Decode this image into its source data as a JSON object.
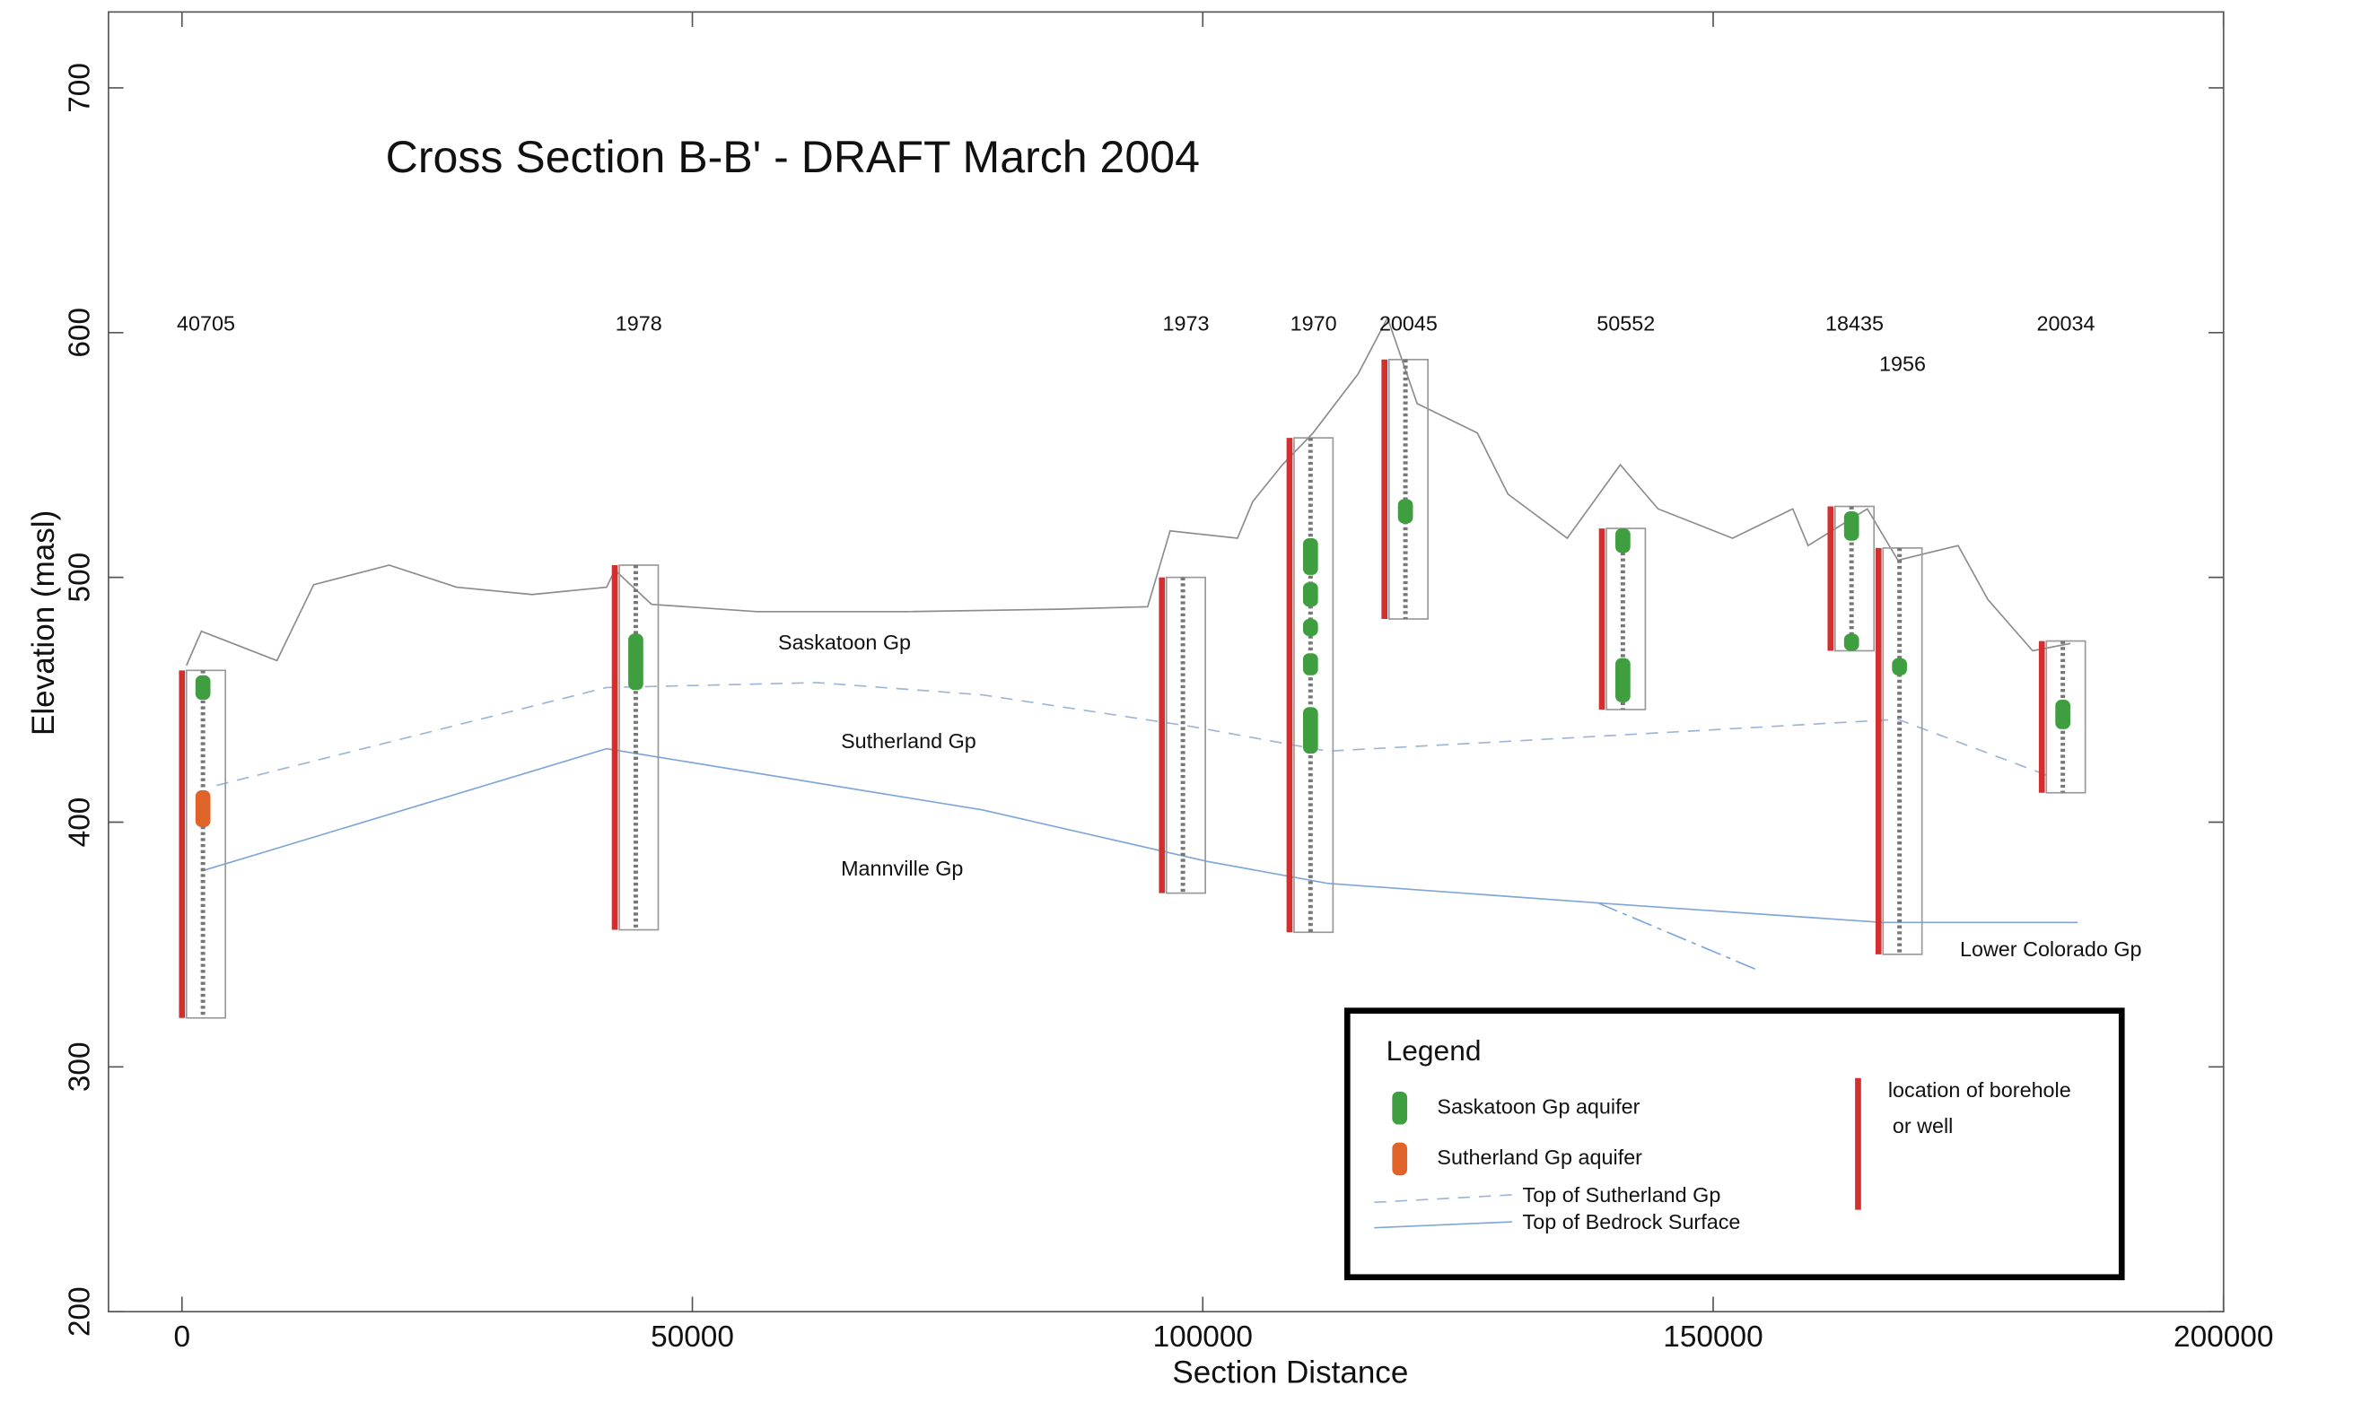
{
  "chart_data": {
    "type": "cross-section",
    "title": "Cross Section B-B' - DRAFT March 2004",
    "x_label": "Section Distance",
    "y_label": "Elevation (masl)",
    "xlim": [
      -7200,
      200000
    ],
    "ylim": [
      200,
      731
    ],
    "xticks": [
      0,
      50000,
      100000,
      150000,
      200000
    ],
    "yticks": [
      200,
      300,
      400,
      500,
      600,
      700
    ],
    "series": [
      {
        "color": "#8c8c8c",
        "dash": "none",
        "x": [
          440,
          1900,
          9300,
          12900,
          20300,
          26900,
          34300,
          41600,
          42400,
          46000,
          56300,
          71000,
          85800,
          94600,
          96800,
          103400,
          104900,
          107800,
          110800,
          115200,
          118100,
          121000,
          126900,
          129900,
          135700,
          140900,
          144600,
          151900,
          157800,
          159300,
          165100,
          168100,
          174000,
          176900,
          181300,
          185000
        ],
        "y": [
          464,
          478,
          466,
          497,
          505,
          496,
          493,
          496,
          503,
          489,
          486,
          486,
          487,
          488,
          519,
          516,
          531,
          546,
          559,
          583,
          606,
          571,
          559,
          534,
          516,
          546,
          528,
          516,
          528,
          513,
          528,
          507,
          513,
          491,
          470,
          473
        ]
      },
      {
        "name": "Top of Sutherland Gp",
        "color": "#9fb4d6",
        "dash": "8 6",
        "x": [
          3400,
          41600,
          62200,
          78400,
          99000,
          112200,
          129900,
          168100,
          182800
        ],
        "y": [
          415,
          455,
          457,
          452,
          439,
          429,
          433,
          442,
          419
        ]
      },
      {
        "name": "Top of Bedrock Surface",
        "color": "#7ea6d8",
        "dash": "none",
        "x": [
          1900,
          41600,
          78400,
          100400,
          112200,
          138700,
          166600,
          185700
        ],
        "y": [
          380,
          430,
          405,
          384,
          375,
          367,
          359,
          359
        ]
      },
      {
        "color": "#7ea6d8",
        "dash": "14 4 3 4",
        "x": [
          138700,
          154100
        ],
        "y": [
          367,
          340
        ]
      }
    ],
    "aquifer_types": [
      {
        "name": "Saskatoon Gp aquifer",
        "color": "#3f9e3f"
      },
      {
        "name": "Sutherland Gp aquifer",
        "color": "#e0632a"
      }
    ],
    "borehole_legend": [
      "location of borehole",
      "or well"
    ],
    "borehole_color": "#d42f2f",
    "legend_title": "Legend",
    "boreholes": [
      {
        "name": "40705",
        "x": 0,
        "top": 462,
        "bottom": 320,
        "saskatoon": [
          [
            460,
            450
          ]
        ],
        "sutherland": [
          [
            413,
            398
          ]
        ]
      },
      {
        "name": "1978",
        "x": 42400,
        "top": 505,
        "bottom": 356,
        "saskatoon": [
          [
            477,
            454
          ]
        ],
        "sutherland": []
      },
      {
        "name": "1973",
        "x": 96000,
        "top": 500,
        "bottom": 371,
        "saskatoon": [],
        "sutherland": []
      },
      {
        "name": "1970",
        "x": 108500,
        "top": 557,
        "bottom": 355,
        "saskatoon": [
          [
            516,
            501
          ],
          [
            498,
            488
          ],
          [
            483,
            476
          ],
          [
            469,
            460
          ],
          [
            447,
            428
          ]
        ],
        "sutherland": []
      },
      {
        "name": "20045",
        "x": 117800,
        "top": 589,
        "bottom": 483,
        "saskatoon": [
          [
            532,
            522
          ]
        ],
        "sutherland": []
      },
      {
        "name": "50552",
        "x": 139100,
        "top": 520,
        "bottom": 446,
        "saskatoon": [
          [
            520,
            510
          ],
          [
            467,
            449
          ]
        ],
        "sutherland": []
      },
      {
        "name": "18435",
        "x": 161500,
        "top": 529,
        "bottom": 470,
        "saskatoon": [
          [
            527,
            515
          ],
          [
            477,
            470
          ]
        ],
        "sutherland": []
      },
      {
        "name": "1956",
        "x": 166200,
        "top": 512,
        "bottom": 346,
        "saskatoon": [
          [
            467,
            460
          ]
        ],
        "sutherland": []
      },
      {
        "name": "20034",
        "x": 182200,
        "top": 474,
        "bottom": 412,
        "saskatoon": [
          [
            450,
            438
          ]
        ],
        "sutherland": []
      }
    ],
    "annotations": [
      "Saskatoon Gp",
      "Sutherland Gp",
      "Mannville Gp",
      "Lower Colorado Gp"
    ]
  }
}
